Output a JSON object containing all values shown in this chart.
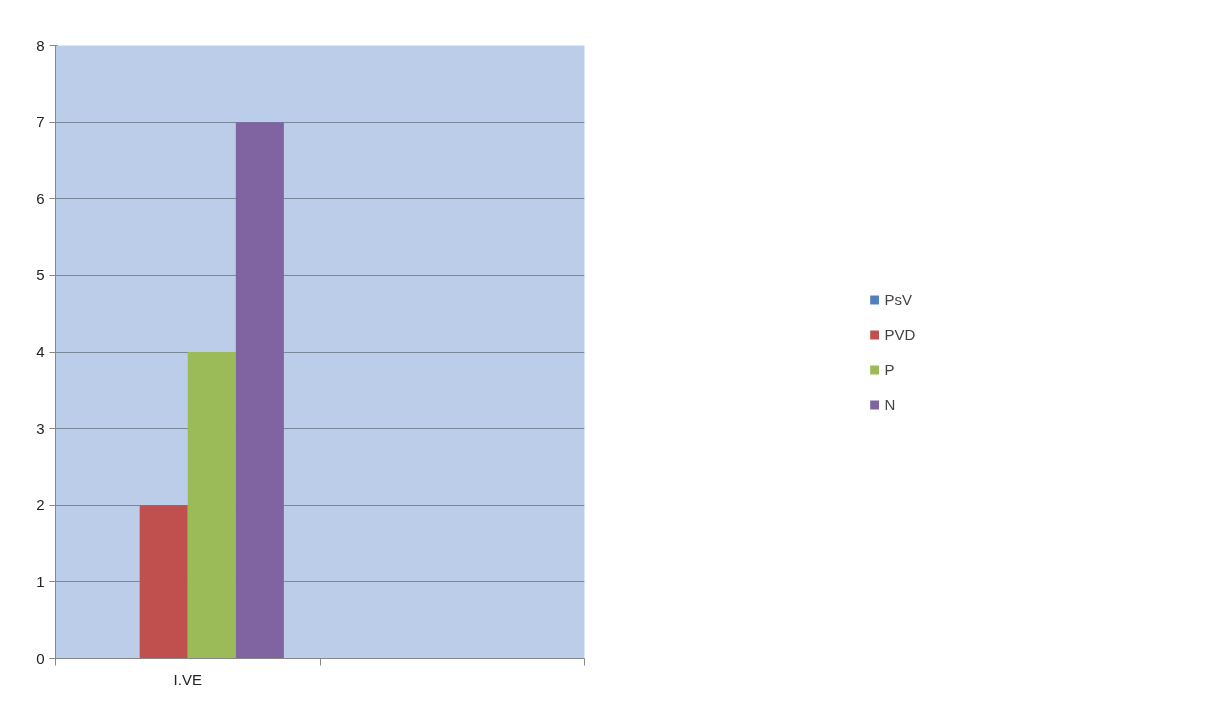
{
  "chart_data": {
    "type": "bar",
    "categories": [
      "I.VE",
      null
    ],
    "series": [
      {
        "name": "PsV",
        "color": "#4f81bd",
        "values": [
          0,
          null
        ]
      },
      {
        "name": "PVD",
        "color": "#c0504d",
        "values": [
          2,
          null
        ]
      },
      {
        "name": "P",
        "color": "#9bbb59",
        "values": [
          4,
          null
        ]
      },
      {
        "name": "N",
        "color": "#8064a2",
        "values": [
          7,
          null
        ]
      }
    ],
    "ylim": [
      0,
      8
    ],
    "yticks": [
      0,
      1,
      2,
      3,
      4,
      5,
      6,
      7,
      8
    ],
    "grid": "y",
    "legend": "right"
  }
}
